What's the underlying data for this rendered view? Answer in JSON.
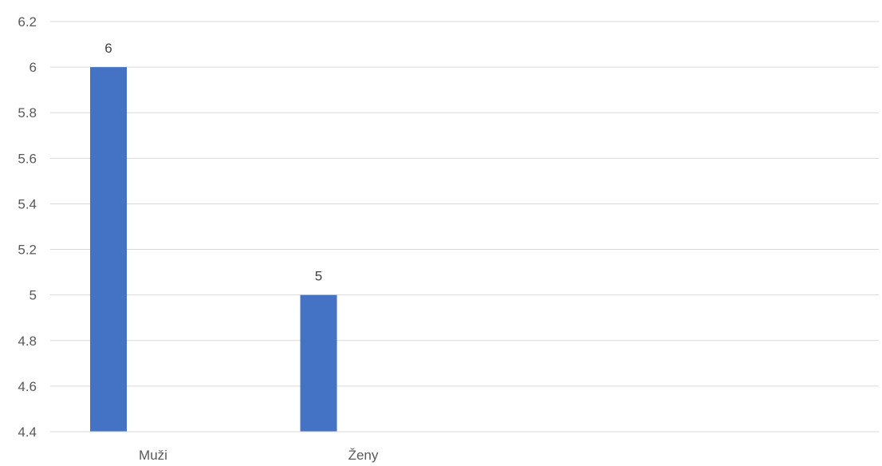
{
  "chart_data": {
    "type": "bar",
    "categories": [
      "Muži",
      "Ženy"
    ],
    "values": [
      6,
      5
    ],
    "data_labels": [
      "6",
      "5"
    ],
    "y_ticks": [
      "4.4",
      "4.6",
      "4.8",
      "5",
      "5.2",
      "5.4",
      "5.6",
      "5.8",
      "6",
      "6.2"
    ],
    "ylim": [
      4.4,
      6.2
    ],
    "title": "",
    "xlabel": "",
    "ylabel": "",
    "grid": true,
    "legend": "none",
    "bar_color": "#4472c4"
  }
}
